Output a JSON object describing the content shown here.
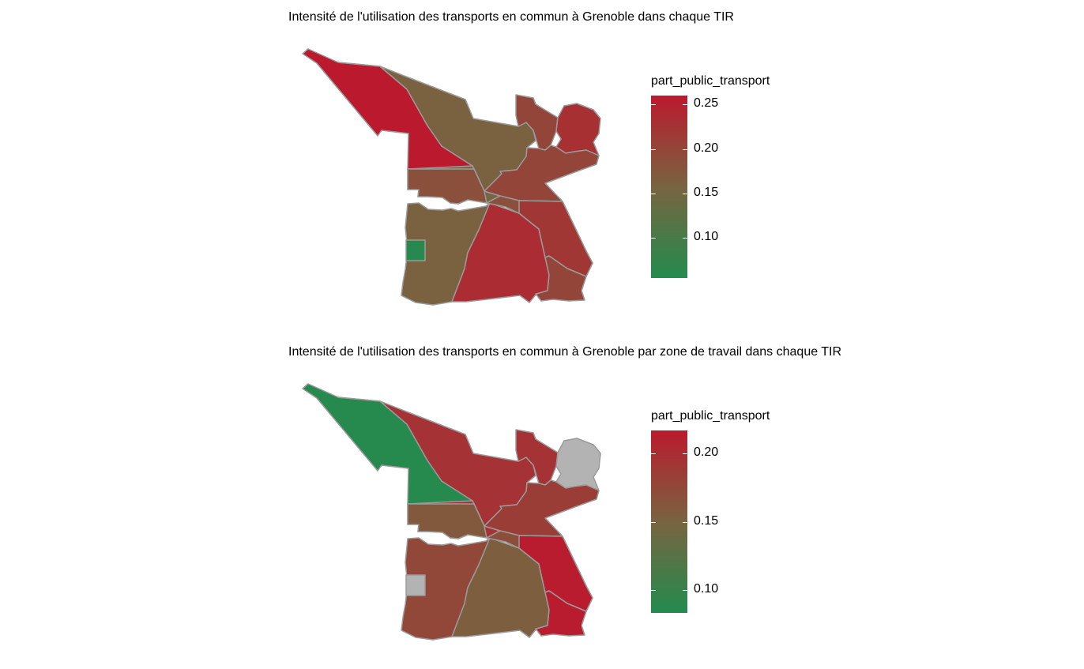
{
  "maps": [
    {
      "title": "Intensité de l'utilisation des transports en commun à Grenoble dans chaque TIR",
      "legend": {
        "title": "part_public_transport",
        "ticks": [
          "0.25",
          "0.20",
          "0.15",
          "0.10"
        ],
        "tick_values": [
          0.25,
          0.2,
          0.15,
          0.1
        ],
        "range": [
          0.055,
          0.26
        ],
        "colors": [
          "#238b4e",
          "#786440",
          "#bb1a2e"
        ]
      },
      "zones": [
        {
          "id": "north-west",
          "value": 0.26
        },
        {
          "id": "north-central",
          "value": 0.16
        },
        {
          "id": "north-east-small",
          "value": 0.2
        },
        {
          "id": "north-east-round",
          "value": 0.23
        },
        {
          "id": "east-band",
          "value": 0.2
        },
        {
          "id": "central-narrow",
          "value": 0.155
        },
        {
          "id": "west-mid",
          "value": 0.185
        },
        {
          "id": "center-east-wedge",
          "value": 0.185
        },
        {
          "id": "south-west",
          "value": 0.16
        },
        {
          "id": "south-center",
          "value": 0.235
        },
        {
          "id": "south-east",
          "value": 0.22
        },
        {
          "id": "south-east-low",
          "value": 0.2
        },
        {
          "id": "small-square",
          "value": 0.06
        }
      ]
    },
    {
      "title": "Intensité de l'utilisation des transports en commun à Grenoble par zone de travail dans chaque TIR",
      "legend": {
        "title": "part_public_transport",
        "ticks": [
          "0.20",
          "0.15",
          "0.10"
        ],
        "tick_values": [
          0.2,
          0.15,
          0.1
        ],
        "range": [
          0.083,
          0.217
        ],
        "colors": [
          "#238b4e",
          "#786440",
          "#bb1a2e"
        ]
      },
      "na_color": "#b3b3b3",
      "zones": [
        {
          "id": "north-west",
          "value": 0.085
        },
        {
          "id": "north-central",
          "value": 0.195
        },
        {
          "id": "north-east-small",
          "value": 0.195
        },
        {
          "id": "north-east-round",
          "value": null
        },
        {
          "id": "east-band",
          "value": 0.185
        },
        {
          "id": "central-narrow",
          "value": 0.195
        },
        {
          "id": "west-mid",
          "value": 0.16
        },
        {
          "id": "center-east-wedge",
          "value": 0.17
        },
        {
          "id": "south-west",
          "value": 0.175
        },
        {
          "id": "south-center",
          "value": 0.155
        },
        {
          "id": "south-east",
          "value": 0.215
        },
        {
          "id": "south-east-low",
          "value": 0.215
        },
        {
          "id": "small-square",
          "value": null
        }
      ]
    }
  ]
}
